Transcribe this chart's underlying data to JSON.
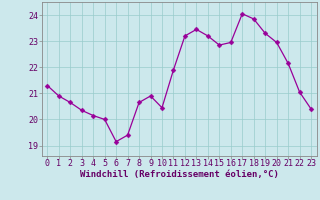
{
  "x": [
    0,
    1,
    2,
    3,
    4,
    5,
    6,
    7,
    8,
    9,
    10,
    11,
    12,
    13,
    14,
    15,
    16,
    17,
    18,
    19,
    20,
    21,
    22,
    23
  ],
  "y": [
    21.3,
    20.9,
    20.65,
    20.35,
    20.15,
    20.0,
    19.15,
    19.4,
    20.65,
    20.9,
    20.45,
    21.9,
    23.2,
    23.45,
    23.2,
    22.85,
    22.95,
    24.05,
    23.85,
    23.3,
    22.95,
    22.15,
    21.05,
    20.4
  ],
  "line_color": "#990099",
  "marker_color": "#990099",
  "bg_color": "#cce8ec",
  "grid_color": "#99cccc",
  "xlabel": "Windchill (Refroidissement éolien,°C)",
  "yticks": [
    19,
    20,
    21,
    22,
    23,
    24
  ],
  "xticks": [
    0,
    1,
    2,
    3,
    4,
    5,
    6,
    7,
    8,
    9,
    10,
    11,
    12,
    13,
    14,
    15,
    16,
    17,
    18,
    19,
    20,
    21,
    22,
    23
  ],
  "ylim": [
    18.6,
    24.5
  ],
  "xlim": [
    -0.5,
    23.5
  ],
  "xlabel_fontsize": 6.5,
  "tick_fontsize": 6.0,
  "label_color": "#660066",
  "spine_color": "#888888",
  "marker_size": 2.5,
  "linewidth": 0.9
}
